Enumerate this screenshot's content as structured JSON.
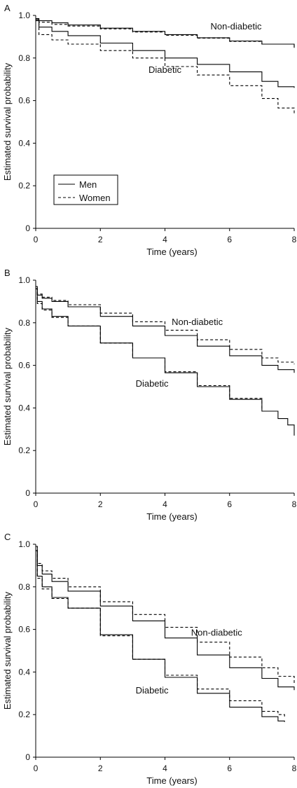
{
  "chart_data": [
    {
      "type": "line",
      "panel": "A",
      "xlabel": "Time (years)",
      "ylabel": "Estimated survival probability",
      "xlim": [
        0,
        8
      ],
      "ylim": [
        0,
        1.0
      ],
      "xticks": [
        "0",
        "2",
        "4",
        "6",
        "8"
      ],
      "yticks": [
        "0",
        "0.2",
        "0.4",
        "0.6",
        "0.8",
        "1.0"
      ],
      "grid": false,
      "legend": {
        "position": "lower-left",
        "entries": [
          {
            "label": "Men",
            "style": "solid"
          },
          {
            "label": "Women",
            "style": "dashed"
          }
        ]
      },
      "annotations": [
        {
          "text": "Non-diabetic",
          "x": 6.2,
          "y": 0.935
        },
        {
          "text": "Diabetic",
          "x": 4.0,
          "y": 0.73
        }
      ],
      "series": [
        {
          "group": "Non-diabetic",
          "sex": "Men",
          "style": "solid",
          "x": [
            0,
            0.1,
            0.5,
            1,
            2,
            3,
            4,
            5,
            6,
            7,
            8
          ],
          "y": [
            0.985,
            0.975,
            0.965,
            0.955,
            0.94,
            0.925,
            0.91,
            0.895,
            0.88,
            0.865,
            0.848
          ]
        },
        {
          "group": "Non-diabetic",
          "sex": "Women",
          "style": "dashed",
          "x": [
            0,
            0.1,
            0.5,
            1,
            2,
            3,
            4,
            5,
            6,
            7,
            8
          ],
          "y": [
            0.985,
            0.968,
            0.958,
            0.95,
            0.937,
            0.922,
            0.907,
            0.893,
            0.878,
            0.865,
            0.852
          ]
        },
        {
          "group": "Diabetic",
          "sex": "Men",
          "style": "solid",
          "x": [
            0,
            0.1,
            0.5,
            1,
            2,
            3,
            4,
            5,
            6,
            7,
            7.5,
            8
          ],
          "y": [
            0.98,
            0.945,
            0.925,
            0.905,
            0.87,
            0.835,
            0.8,
            0.77,
            0.735,
            0.69,
            0.665,
            0.66
          ]
        },
        {
          "group": "Diabetic",
          "sex": "Women",
          "style": "dashed",
          "x": [
            0,
            0.1,
            0.5,
            1,
            2,
            3,
            4,
            5,
            6,
            7,
            7.5,
            8
          ],
          "y": [
            0.975,
            0.91,
            0.885,
            0.865,
            0.835,
            0.8,
            0.76,
            0.72,
            0.67,
            0.61,
            0.565,
            0.54
          ]
        }
      ]
    },
    {
      "type": "line",
      "panel": "B",
      "xlabel": "Time (years)",
      "ylabel": "Estimated survival probability",
      "xlim": [
        0,
        8
      ],
      "ylim": [
        0,
        1.0
      ],
      "xticks": [
        "0",
        "2",
        "4",
        "6",
        "8"
      ],
      "yticks": [
        "0",
        "0.2",
        "0.4",
        "0.6",
        "0.8",
        "1.0"
      ],
      "grid": false,
      "annotations": [
        {
          "text": "Non-diabetic",
          "x": 5.0,
          "y": 0.79
        },
        {
          "text": "Diabetic",
          "x": 3.6,
          "y": 0.5
        }
      ],
      "series": [
        {
          "group": "Non-diabetic",
          "sex": "Men",
          "style": "solid",
          "x": [
            0,
            0.05,
            0.2,
            0.5,
            1,
            2,
            3,
            4,
            5,
            6,
            7,
            7.5,
            8
          ],
          "y": [
            0.96,
            0.93,
            0.915,
            0.9,
            0.875,
            0.83,
            0.785,
            0.74,
            0.69,
            0.645,
            0.6,
            0.58,
            0.565
          ]
        },
        {
          "group": "Non-diabetic",
          "sex": "Women",
          "style": "dashed",
          "x": [
            0,
            0.05,
            0.2,
            0.5,
            1,
            2,
            3,
            4,
            5,
            6,
            7,
            7.5,
            8
          ],
          "y": [
            0.96,
            0.935,
            0.92,
            0.905,
            0.885,
            0.845,
            0.805,
            0.765,
            0.72,
            0.675,
            0.635,
            0.615,
            0.605
          ]
        },
        {
          "group": "Diabetic",
          "sex": "Men",
          "style": "solid",
          "x": [
            0,
            0.05,
            0.2,
            0.5,
            1,
            2,
            3,
            4,
            5,
            6,
            7,
            7.5,
            7.8,
            8
          ],
          "y": [
            0.97,
            0.9,
            0.865,
            0.83,
            0.785,
            0.705,
            0.635,
            0.565,
            0.5,
            0.44,
            0.385,
            0.35,
            0.32,
            0.27
          ]
        },
        {
          "group": "Diabetic",
          "sex": "Women",
          "style": "dashed",
          "x": [
            0,
            0.05,
            0.2,
            0.5,
            1,
            2,
            3,
            4,
            5,
            6,
            7
          ],
          "y": [
            0.96,
            0.89,
            0.86,
            0.825,
            0.785,
            0.705,
            0.635,
            0.57,
            0.505,
            0.445,
            0.39
          ]
        }
      ]
    },
    {
      "type": "line",
      "panel": "C",
      "xlabel": "Time (years)",
      "ylabel": "Estimated survival probability",
      "xlim": [
        0,
        8
      ],
      "ylim": [
        0,
        1.0
      ],
      "xticks": [
        "0",
        "2",
        "4",
        "6",
        "8"
      ],
      "yticks": [
        "0",
        "0.2",
        "0.4",
        "0.6",
        "0.8",
        "1.0"
      ],
      "grid": false,
      "annotations": [
        {
          "text": "Non-diabetic",
          "x": 5.6,
          "y": 0.57
        },
        {
          "text": "Diabetic",
          "x": 3.6,
          "y": 0.3
        }
      ],
      "series": [
        {
          "group": "Non-diabetic",
          "sex": "Men",
          "style": "solid",
          "x": [
            0,
            0.05,
            0.2,
            0.5,
            1,
            2,
            3,
            4,
            5,
            6,
            7,
            7.5,
            8
          ],
          "y": [
            0.99,
            0.9,
            0.86,
            0.825,
            0.78,
            0.71,
            0.64,
            0.56,
            0.48,
            0.42,
            0.37,
            0.33,
            0.315
          ]
        },
        {
          "group": "Non-diabetic",
          "sex": "Women",
          "style": "dashed",
          "x": [
            0,
            0.05,
            0.2,
            0.5,
            1,
            2,
            3,
            4,
            5,
            6,
            7,
            7.5,
            8
          ],
          "y": [
            0.99,
            0.91,
            0.875,
            0.84,
            0.8,
            0.73,
            0.67,
            0.61,
            0.54,
            0.47,
            0.42,
            0.38,
            0.345
          ]
        },
        {
          "group": "Diabetic",
          "sex": "Men",
          "style": "solid",
          "x": [
            0,
            0.05,
            0.2,
            0.5,
            1,
            2,
            3,
            4,
            5,
            6,
            7,
            7.5,
            7.7
          ],
          "y": [
            0.97,
            0.85,
            0.8,
            0.75,
            0.7,
            0.575,
            0.46,
            0.375,
            0.3,
            0.235,
            0.19,
            0.17,
            0.165
          ]
        },
        {
          "group": "Diabetic",
          "sex": "Women",
          "style": "dashed",
          "x": [
            0,
            0.05,
            0.2,
            0.5,
            1,
            2,
            3,
            4,
            5,
            6,
            7,
            7.5,
            7.7
          ],
          "y": [
            0.97,
            0.84,
            0.79,
            0.745,
            0.7,
            0.57,
            0.46,
            0.385,
            0.32,
            0.265,
            0.215,
            0.2,
            0.19
          ]
        }
      ]
    }
  ]
}
